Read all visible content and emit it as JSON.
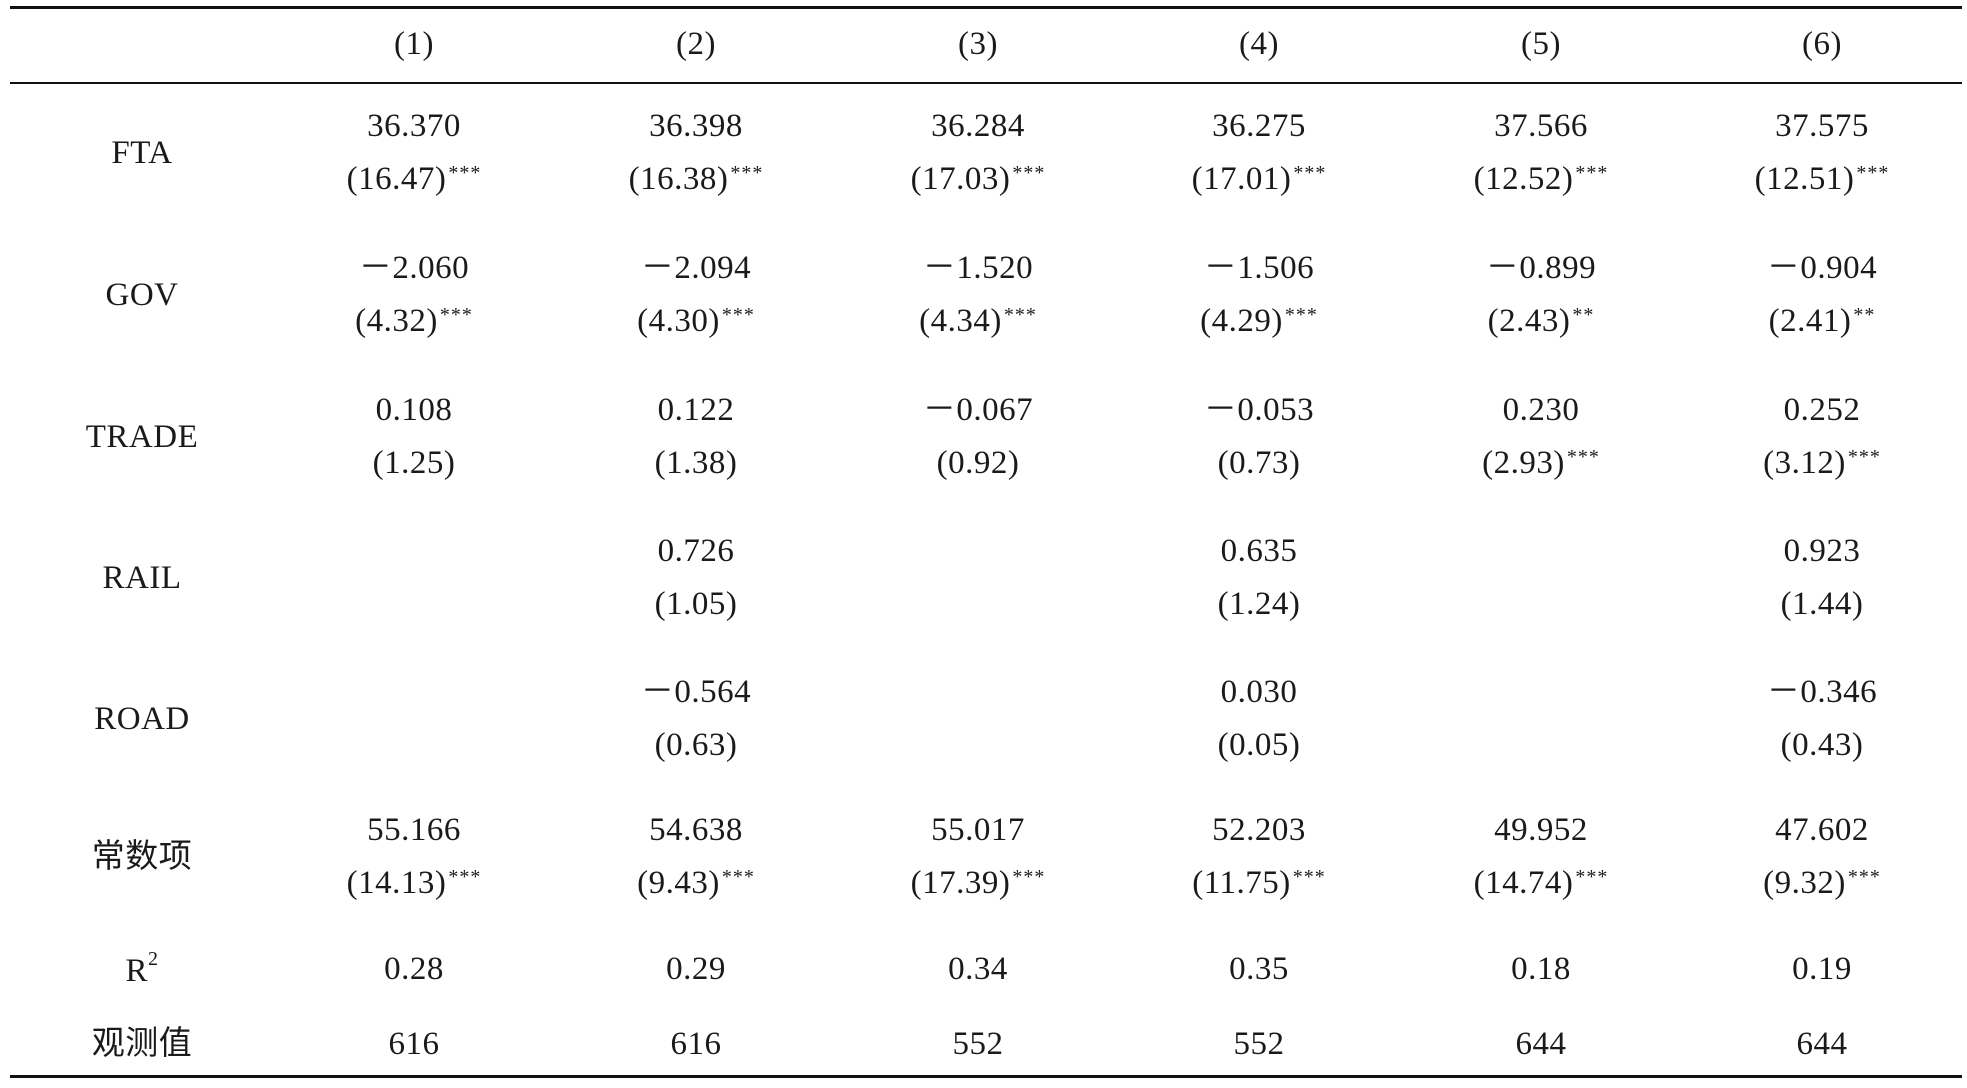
{
  "header": [
    "(1)",
    "(2)",
    "(3)",
    "(4)",
    "(5)",
    "(6)"
  ],
  "rows": [
    {
      "label": "FTA",
      "coef": [
        "36.370",
        "36.398",
        "36.284",
        "36.275",
        "37.566",
        "37.575"
      ],
      "tstat": [
        "(16.47)",
        "(16.38)",
        "(17.03)",
        "(17.01)",
        "(12.52)",
        "(12.51)"
      ],
      "stars": [
        "***",
        "***",
        "***",
        "***",
        "***",
        "***"
      ]
    },
    {
      "label": "GOV",
      "coef": [
        "－2.060",
        "－2.094",
        "－1.520",
        "－1.506",
        "－0.899",
        "－0.904"
      ],
      "tstat": [
        "(4.32)",
        "(4.30)",
        "(4.34)",
        "(4.29)",
        "(2.43)",
        "(2.41)"
      ],
      "stars": [
        "***",
        "***",
        "***",
        "***",
        "**",
        "**"
      ]
    },
    {
      "label": "TRADE",
      "coef": [
        "0.108",
        "0.122",
        "－0.067",
        "－0.053",
        "0.230",
        "0.252"
      ],
      "tstat": [
        "(1.25)",
        "(1.38)",
        "(0.92)",
        "(0.73)",
        "(2.93)",
        "(3.12)"
      ],
      "stars": [
        "",
        "",
        "",
        "",
        "***",
        "***"
      ]
    },
    {
      "label": "RAIL",
      "coef": [
        "",
        "0.726",
        "",
        "0.635",
        "",
        "0.923"
      ],
      "tstat": [
        "",
        "(1.05)",
        "",
        "(1.24)",
        "",
        "(1.44)"
      ],
      "stars": [
        "",
        "",
        "",
        "",
        "",
        ""
      ]
    },
    {
      "label": "ROAD",
      "coef": [
        "",
        "－0.564",
        "",
        "0.030",
        "",
        "－0.346"
      ],
      "tstat": [
        "",
        "(0.63)",
        "",
        "(0.05)",
        "",
        "(0.43)"
      ],
      "stars": [
        "",
        "",
        "",
        "",
        "",
        ""
      ]
    },
    {
      "label": "常数项",
      "coef": [
        "55.166",
        "54.638",
        "55.017",
        "52.203",
        "49.952",
        "47.602"
      ],
      "tstat": [
        "(14.13)",
        "(9.43)",
        "(17.39)",
        "(11.75)",
        "(14.74)",
        "(9.32)"
      ],
      "stars": [
        "***",
        "***",
        "***",
        "***",
        "***",
        "***"
      ]
    }
  ],
  "r2": {
    "label": "R",
    "label_sup": "2",
    "values": [
      "0.28",
      "0.29",
      "0.34",
      "0.35",
      "0.18",
      "0.19"
    ]
  },
  "obs": {
    "label": "观测值",
    "values": [
      "616",
      "616",
      "552",
      "552",
      "644",
      "644"
    ]
  }
}
